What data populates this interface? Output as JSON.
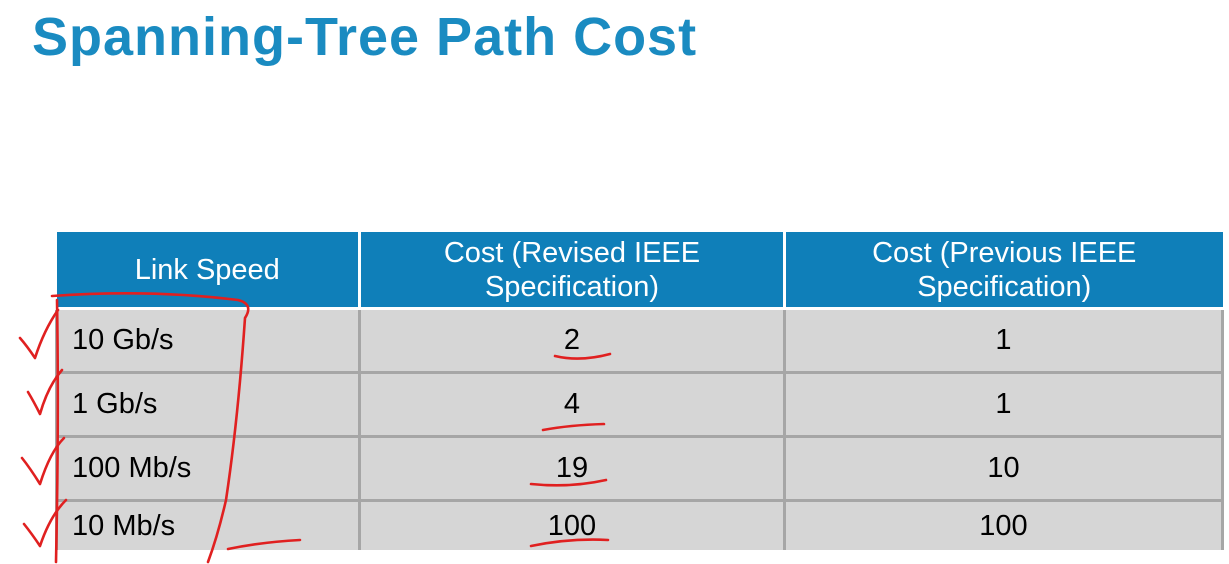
{
  "title": "Spanning-Tree Path Cost",
  "colors": {
    "title": "#1a8bc1",
    "header_bg": "#0f7fb9",
    "cell_bg": "#d6d6d6",
    "annotation": "#e02020"
  },
  "table": {
    "headers": [
      "Link Speed",
      "Cost (Revised IEEE Specification)",
      "Cost (Previous IEEE Specification)"
    ],
    "rows": [
      {
        "speed": "10 Gb/s",
        "revised": "2",
        "previous": "1"
      },
      {
        "speed": "1 Gb/s",
        "revised": "4",
        "previous": "1"
      },
      {
        "speed": "100 Mb/s",
        "revised": "19",
        "previous": "10"
      },
      {
        "speed": "10 Mb/s",
        "revised": "100",
        "previous": "100"
      }
    ]
  }
}
